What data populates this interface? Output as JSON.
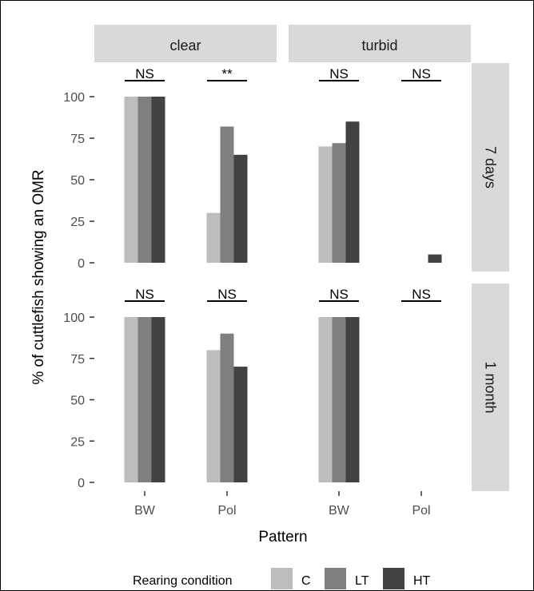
{
  "chart_data": {
    "type": "bar",
    "xlabel": "Pattern",
    "ylabel": "% of cuttlefish showing an OMR",
    "ylim": [
      0,
      100
    ],
    "yticks": [
      0,
      25,
      50,
      75,
      100
    ],
    "categories": [
      "BW",
      "Pol"
    ],
    "legend_title": "Rearing condition",
    "legend_position": "bottom",
    "grid": false,
    "series": [
      {
        "name": "C",
        "color": "#bdbdbd"
      },
      {
        "name": "LT",
        "color": "#7f7f7f"
      },
      {
        "name": "HT",
        "color": "#424242"
      }
    ],
    "col_facets": [
      "clear",
      "turbid"
    ],
    "row_facets": [
      "7 days",
      "1 month"
    ],
    "panels": [
      {
        "row": "7 days",
        "col": "clear",
        "values": {
          "BW": [
            100,
            100,
            100
          ],
          "Pol": [
            30,
            82,
            65
          ]
        },
        "significance": {
          "BW": "NS",
          "Pol": "**"
        }
      },
      {
        "row": "7 days",
        "col": "turbid",
        "values": {
          "BW": [
            70,
            72,
            85
          ],
          "Pol": [
            0,
            0,
            5
          ]
        },
        "significance": {
          "BW": "NS",
          "Pol": "NS"
        }
      },
      {
        "row": "1 month",
        "col": "clear",
        "values": {
          "BW": [
            100,
            100,
            100
          ],
          "Pol": [
            80,
            90,
            70
          ]
        },
        "significance": {
          "BW": "NS",
          "Pol": "NS"
        }
      },
      {
        "row": "1 month",
        "col": "turbid",
        "values": {
          "BW": [
            100,
            100,
            100
          ],
          "Pol": [
            0,
            0,
            0
          ]
        },
        "significance": {
          "BW": "NS",
          "Pol": "NS"
        }
      }
    ]
  }
}
